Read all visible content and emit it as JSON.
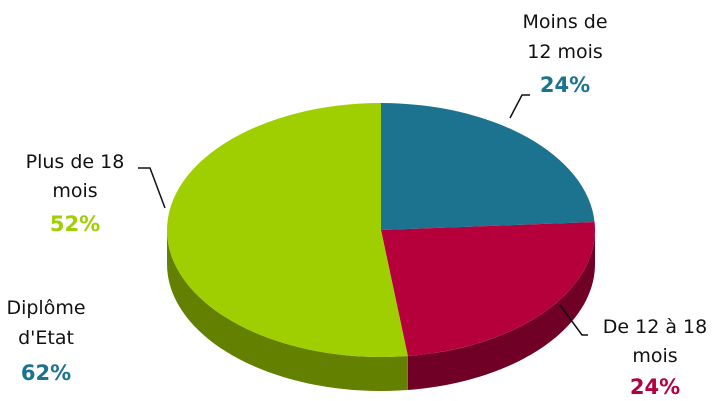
{
  "chart_data": {
    "type": "pie",
    "style": "3d",
    "categories": [
      "Moins de 12 mois",
      "De 12 à 18 mois",
      "Plus de 18 mois"
    ],
    "slices": [
      {
        "label_lines": [
          "Moins de",
          "12 mois"
        ],
        "pct_label": "24%",
        "value": 24,
        "color": "#1b7390"
      },
      {
        "label_lines": [
          "De 12 à 18",
          "mois"
        ],
        "pct_label": "24%",
        "value": 24,
        "color": "#b5003c"
      },
      {
        "label_lines": [
          "Plus de 18",
          "mois"
        ],
        "pct_label": "52%",
        "value": 52,
        "color": "#9fcf00"
      }
    ],
    "annotation": {
      "label_lines": [
        "Diplôme",
        "d'Etat"
      ],
      "pct_label": "62%",
      "color": "#1b7390"
    }
  }
}
